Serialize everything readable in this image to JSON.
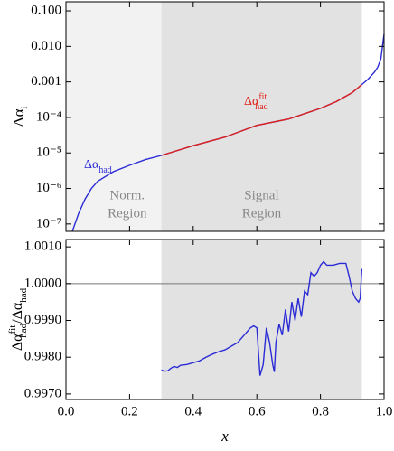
{
  "chart_data": [
    {
      "type": "line",
      "ylog": true,
      "ylabel": {
        "base": "Δα",
        "sub": "i"
      },
      "ylim": [
        6.2e-08,
        0.18
      ],
      "yticks": [
        {
          "value": 0.1,
          "label": "0.100"
        },
        {
          "value": 0.01,
          "label": "0.010"
        },
        0.001,
        {
          "value": 0.0001,
          "label": "10⁻⁴"
        },
        {
          "value": 1e-05,
          "label": "10⁻⁵"
        },
        {
          "value": 1e-06,
          "label": "10⁻⁶"
        },
        {
          "value": 1e-07,
          "label": "10⁻⁷"
        }
      ],
      "xlim": [
        0,
        1
      ],
      "regions": [
        {
          "x": [
            0,
            0.3
          ],
          "color": "#f2f2f2",
          "label": [
            "Norm.",
            "Region"
          ]
        },
        {
          "x": [
            0.3,
            0.93
          ],
          "color": "#e2e2e2",
          "label": [
            "Signal",
            "Region"
          ]
        }
      ],
      "series": [
        {
          "color": "#2b2bd6",
          "label": {
            "base": "Δα",
            "sub": "had"
          },
          "x": [
            0.02,
            0.04,
            0.06,
            0.08,
            0.1,
            0.15,
            0.2,
            0.25,
            0.3,
            0.4,
            0.5,
            0.6,
            0.7,
            0.8,
            0.85,
            0.9,
            0.93,
            0.95,
            0.97,
            0.98,
            0.99,
            0.995,
            1.0
          ],
          "values": [
            6.2e-08,
            2e-07,
            5e-07,
            1e-06,
            1.6e-06,
            3e-06,
            4.5e-06,
            6.5e-06,
            8.5e-06,
            1.6e-05,
            2.8e-05,
            6e-05,
            9e-05,
            0.00018,
            0.00028,
            0.0005,
            0.00084,
            0.0012,
            0.0019,
            0.0026,
            0.0045,
            0.01,
            0.022
          ]
        },
        {
          "color": "#e0201a",
          "label": {
            "base": "Δα",
            "sub": "had",
            "sup": "fit"
          },
          "x": [
            0.3,
            0.4,
            0.5,
            0.6,
            0.7,
            0.8,
            0.85,
            0.9,
            0.93
          ],
          "values": [
            8.5e-06,
            1.6e-05,
            2.8e-05,
            6e-05,
            9e-05,
            0.00018,
            0.00028,
            0.0005,
            0.00084
          ]
        }
      ]
    },
    {
      "type": "line",
      "ylabel": [
        {
          "t": "Δα"
        },
        {
          "t": "fit",
          "s": "sup"
        },
        {
          "t": "had",
          "s": "sub"
        },
        {
          "t": "/Δα"
        },
        {
          "t": "had",
          "s": "sub"
        }
      ],
      "xlabel": "x",
      "ylim": [
        0.99685,
        1.0012
      ],
      "yticks": [
        {
          "value": 0.997,
          "label": "0.9970"
        },
        {
          "value": 0.998,
          "label": "0.9980"
        },
        {
          "value": 0.999,
          "label": "0.9990"
        },
        {
          "value": 1,
          "label": "1.0000"
        },
        {
          "value": 1.001,
          "label": "1.0010"
        }
      ],
      "xlim": [
        0,
        1
      ],
      "xticks": [
        {
          "value": 0,
          "label": "0.0"
        },
        0.2,
        0.4,
        0.6,
        0.8,
        {
          "value": 1,
          "label": "1.0"
        }
      ],
      "hline": 1,
      "regions": [
        {
          "x": [
            0.3,
            0.93
          ],
          "color": "#e2e2e2"
        }
      ],
      "series": [
        {
          "color": "#2b2bd6",
          "x": [
            0.3,
            0.31,
            0.32,
            0.33,
            0.34,
            0.35,
            0.36,
            0.38,
            0.4,
            0.42,
            0.44,
            0.46,
            0.48,
            0.5,
            0.52,
            0.54,
            0.56,
            0.58,
            0.59,
            0.6,
            0.61,
            0.62,
            0.63,
            0.64,
            0.65,
            0.655,
            0.66,
            0.67,
            0.68,
            0.69,
            0.7,
            0.71,
            0.72,
            0.73,
            0.74,
            0.75,
            0.76,
            0.77,
            0.78,
            0.79,
            0.8,
            0.81,
            0.82,
            0.84,
            0.86,
            0.88,
            0.89,
            0.9,
            0.91,
            0.92,
            0.925,
            0.93
          ],
          "values": [
            0.99765,
            0.99762,
            0.99763,
            0.9977,
            0.99775,
            0.99772,
            0.99778,
            0.9978,
            0.99785,
            0.9979,
            0.998,
            0.99808,
            0.99815,
            0.9982,
            0.9983,
            0.9984,
            0.9986,
            0.9988,
            0.99885,
            0.9988,
            0.9975,
            0.9978,
            0.9988,
            0.9984,
            0.9978,
            0.9976,
            0.9984,
            0.9989,
            0.9986,
            0.9993,
            0.9987,
            0.9995,
            0.999,
            0.9996,
            0.9991,
            0.9998,
            0.9997,
            1.0003,
            1.0002,
            1.0003,
            1.0005,
            1.0006,
            1.0005,
            1.0005,
            1.00055,
            1.00055,
            1.0002,
            0.9998,
            0.9996,
            0.9995,
            0.9996,
            1.0004
          ]
        }
      ]
    }
  ]
}
